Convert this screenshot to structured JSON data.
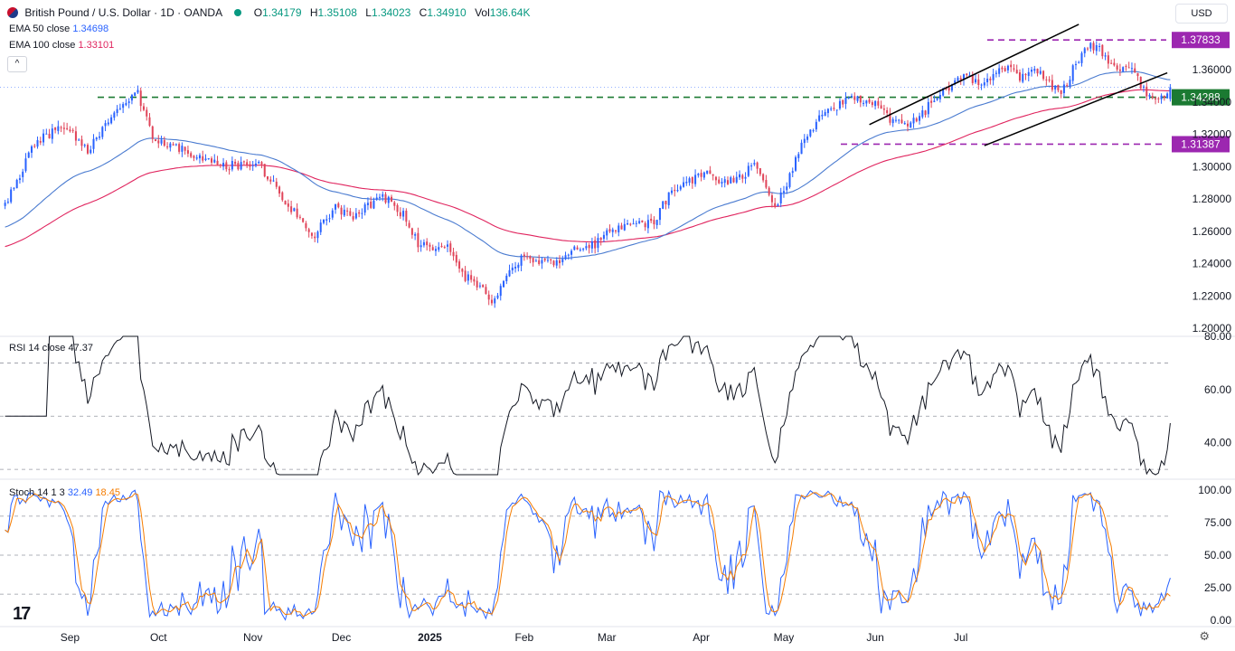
{
  "header": {
    "title": "British Pound / U.S. Dollar · 1D · OANDA",
    "o_label": "O",
    "o_value": "1.34179",
    "h_label": "H",
    "h_value": "1.35108",
    "l_label": "L",
    "l_value": "1.34023",
    "c_label": "C",
    "c_value": "1.34910",
    "vol_label": "Vol",
    "vol_value": "136.64K",
    "ema50_label": "EMA 50 close",
    "ema50_value": "1.34698",
    "ema100_label": "EMA 100 close",
    "ema100_value": "1.33101",
    "rsi_label": "RSI 14 close",
    "rsi_value": "47.37",
    "stoch_label": "Stoch 14 1 3",
    "stoch_k_value": "32.49",
    "stoch_d_value": "18.45",
    "currency": "USD",
    "collapse_glyph": "^",
    "logo_glyph": "17"
  },
  "colors": {
    "up": "#2962ff",
    "down": "#e0455a",
    "ema50": "#4a7bd0",
    "ema100": "#e0245e",
    "level_green": "#1b7a32",
    "level_purple": "#9c27b0",
    "stoch_k": "#2962ff",
    "stoch_d": "#f57c00"
  },
  "chart_data": [
    {
      "type": "candlestick",
      "title": "British Pound / U.S. Dollar · 1D · OANDA",
      "x_tick_labels": [
        "Sep",
        "Oct",
        "Nov",
        "Dec",
        "2025",
        "Feb",
        "Mar",
        "Apr",
        "May",
        "Jun",
        "Jul"
      ],
      "y_tick_labels": [
        "1.36000",
        "1.34000",
        "1.32000",
        "1.30000",
        "1.28000",
        "1.26000",
        "1.24000",
        "1.22000",
        "1.20000"
      ],
      "ylim": [
        1.195,
        1.393
      ],
      "price_anchors": [
        [
          0,
          1.275
        ],
        [
          10,
          1.315
        ],
        [
          20,
          1.325
        ],
        [
          28,
          1.31
        ],
        [
          40,
          1.338
        ],
        [
          45,
          1.345
        ],
        [
          50,
          1.318
        ],
        [
          58,
          1.313
        ],
        [
          65,
          1.305
        ],
        [
          75,
          1.3
        ],
        [
          85,
          1.303
        ],
        [
          90,
          1.292
        ],
        [
          98,
          1.272
        ],
        [
          105,
          1.258
        ],
        [
          112,
          1.275
        ],
        [
          118,
          1.27
        ],
        [
          128,
          1.282
        ],
        [
          135,
          1.27
        ],
        [
          140,
          1.252
        ],
        [
          150,
          1.25
        ],
        [
          155,
          1.232
        ],
        [
          160,
          1.228
        ],
        [
          165,
          1.215
        ],
        [
          170,
          1.23
        ],
        [
          175,
          1.245
        ],
        [
          182,
          1.24
        ],
        [
          188,
          1.243
        ],
        [
          195,
          1.25
        ],
        [
          200,
          1.252
        ],
        [
          206,
          1.262
        ],
        [
          212,
          1.263
        ],
        [
          220,
          1.266
        ],
        [
          226,
          1.285
        ],
        [
          232,
          1.292
        ],
        [
          238,
          1.295
        ],
        [
          245,
          1.29
        ],
        [
          250,
          1.295
        ],
        [
          254,
          1.3
        ],
        [
          258,
          1.285
        ],
        [
          261,
          1.275
        ],
        [
          265,
          1.29
        ],
        [
          270,
          1.315
        ],
        [
          275,
          1.328
        ],
        [
          280,
          1.335
        ],
        [
          285,
          1.34
        ],
        [
          290,
          1.342
        ],
        [
          295,
          1.338
        ],
        [
          300,
          1.33
        ],
        [
          305,
          1.324
        ],
        [
          310,
          1.33
        ],
        [
          315,
          1.342
        ],
        [
          320,
          1.35
        ],
        [
          325,
          1.358
        ],
        [
          330,
          1.352
        ],
        [
          335,
          1.357
        ],
        [
          340,
          1.36
        ],
        [
          345,
          1.355
        ],
        [
          350,
          1.36
        ],
        [
          355,
          1.35
        ],
        [
          358,
          1.346
        ],
        [
          362,
          1.36
        ],
        [
          366,
          1.372
        ],
        [
          370,
          1.375
        ],
        [
          374,
          1.365
        ],
        [
          378,
          1.362
        ],
        [
          382,
          1.36
        ],
        [
          386,
          1.348
        ],
        [
          389,
          1.34
        ],
        [
          392,
          1.343
        ],
        [
          395,
          1.349
        ]
      ],
      "ema50": {
        "name": "EMA 50 close",
        "last": 1.34698
      },
      "ema100": {
        "name": "EMA 100 close",
        "last": 1.33101
      },
      "levels": [
        {
          "label": "1.37833",
          "value": 1.37833,
          "color": "#9c27b0",
          "style": "dashed"
        },
        {
          "label": "1.34288",
          "value": 1.34288,
          "color": "#1b7a32",
          "style": "dashed"
        },
        {
          "label": "1.31387",
          "value": 1.31387,
          "color": "#9c27b0",
          "style": "dashed"
        }
      ],
      "channel": {
        "upper": [
          [
            293,
            1.326
          ],
          [
            364,
            1.388
          ]
        ],
        "lower": [
          [
            332,
            1.313
          ],
          [
            394,
            1.358
          ]
        ]
      },
      "last": {
        "open": 1.34179,
        "high": 1.35108,
        "low": 1.34023,
        "close": 1.3491
      }
    },
    {
      "type": "line",
      "name": "RSI 14 close",
      "y_tick_labels": [
        "80.00",
        "60.00",
        "40.00"
      ],
      "ylim": [
        28,
        80
      ],
      "bands": [
        70,
        50,
        30
      ],
      "last": 47.37
    },
    {
      "type": "line",
      "name": "Stoch 14 1 3",
      "y_tick_labels": [
        "100.00",
        "75.00",
        "50.00",
        "25.00",
        "0.00"
      ],
      "ylim": [
        -5,
        105
      ],
      "bands": [
        80,
        50,
        20
      ],
      "last_k": 32.49,
      "last_d": 18.45
    }
  ]
}
